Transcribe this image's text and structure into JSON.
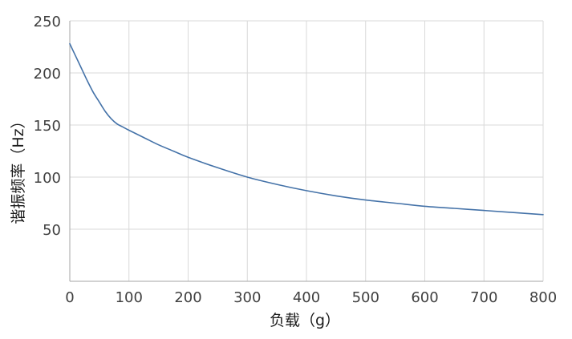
{
  "chart_data": {
    "type": "line",
    "title": "",
    "xlabel": "负载（g）",
    "ylabel": "谐振频率（Hz）",
    "xlim": [
      0,
      800
    ],
    "ylim": [
      0,
      250
    ],
    "x_ticks": [
      0,
      100,
      200,
      300,
      400,
      500,
      600,
      700,
      800
    ],
    "y_ticks": [
      50,
      100,
      150,
      200,
      250
    ],
    "grid": true,
    "legend": "none",
    "series": [
      {
        "color": "#4472a8",
        "x": [
          0,
          10,
          20,
          30,
          40,
          50,
          60,
          70,
          80,
          90,
          100,
          125,
          150,
          175,
          200,
          250,
          300,
          350,
          400,
          450,
          500,
          550,
          600,
          650,
          700,
          750,
          800
        ],
        "y": [
          228,
          216,
          204,
          192,
          181,
          172,
          163,
          156,
          151,
          148,
          145,
          138,
          131,
          125,
          119,
          109,
          100,
          93,
          87,
          82,
          78,
          75,
          72,
          70,
          68,
          66,
          64
        ]
      }
    ]
  }
}
